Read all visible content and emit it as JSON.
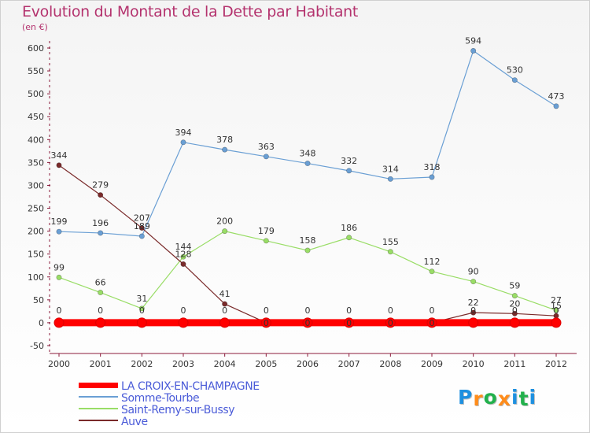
{
  "title": "Evolution du Montant de la Dette par Habitant",
  "unit_label": "(en €)",
  "logo": {
    "letters": [
      "P",
      "r",
      "o",
      "x",
      "i",
      "t",
      "i"
    ],
    "colors": [
      "#1e90e0",
      "#ff8c1a",
      "#22b14c",
      "#ff8c1a",
      "#1e90e0",
      "#22b14c",
      "#1e90e0"
    ]
  },
  "chart_data": {
    "type": "line",
    "title": "Evolution du Montant de la Dette par Habitant",
    "ylabel": "(en €)",
    "xlabel": "",
    "x": [
      "2000",
      "2001",
      "2002",
      "2003",
      "2004",
      "2005",
      "2006",
      "2007",
      "2008",
      "2009",
      "2010",
      "2011",
      "2012"
    ],
    "ylim": [
      -50,
      600
    ],
    "yticks": [
      "-50",
      "0",
      "50",
      "100",
      "150",
      "200",
      "250",
      "300",
      "350",
      "400",
      "450",
      "500",
      "550",
      "600"
    ],
    "grid": false,
    "legend_position": "bottom-left",
    "series": [
      {
        "name": "LA CROIX-EN-CHAMPAGNE",
        "color": "#ff0000",
        "values": [
          0,
          0,
          0,
          0,
          0,
          0,
          0,
          0,
          0,
          0,
          0,
          0,
          0
        ],
        "labels": [
          "0",
          "0",
          "0",
          "0",
          "0",
          "0",
          "0",
          "0",
          "0",
          "0",
          "0",
          "0",
          "0"
        ]
      },
      {
        "name": "Somme-Tourbe",
        "color": "#6a9fd4",
        "values": [
          199,
          196,
          189,
          394,
          378,
          363,
          348,
          332,
          314,
          318,
          594,
          530,
          473
        ],
        "labels": [
          "199",
          "196",
          "189",
          "394",
          "378",
          "363",
          "348",
          "332",
          "314",
          "318",
          "594",
          "530",
          "473"
        ]
      },
      {
        "name": "Saint-Remy-sur-Bussy",
        "color": "#99dd66",
        "values": [
          99,
          66,
          31,
          144,
          200,
          179,
          158,
          186,
          155,
          112,
          90,
          59,
          27
        ],
        "labels": [
          "99",
          "66",
          "31",
          "144",
          "200",
          "179",
          "158",
          "186",
          "155",
          "112",
          "90",
          "59",
          "27"
        ]
      },
      {
        "name": "Auve",
        "color": "#7a2a2a",
        "values": [
          344,
          279,
          207,
          128,
          41,
          0,
          0,
          0,
          0,
          0,
          22,
          20,
          15
        ],
        "labels": [
          "344",
          "279",
          "207",
          "128",
          "41",
          "0",
          "0",
          "0",
          "0",
          "0",
          "22",
          "20",
          "15"
        ]
      }
    ]
  }
}
